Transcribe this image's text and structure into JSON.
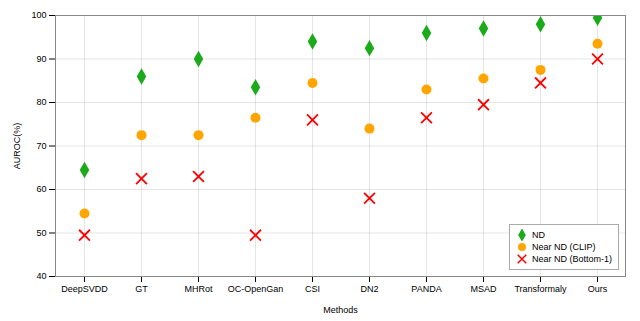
{
  "chart_data": {
    "type": "scatter",
    "xlabel": "Methods",
    "ylabel": "AUROC(%)",
    "categories": [
      "DeepSVDD",
      "GT",
      "MHRot",
      "OC-OpenGan",
      "CSI",
      "DN2",
      "PANDA",
      "MSAD",
      "Transformaly",
      "Ours"
    ],
    "series": [
      {
        "name": "ND",
        "color": "#1aaa1a",
        "marker": "diamond",
        "values": [
          64.5,
          86.0,
          90.0,
          83.5,
          94.0,
          92.5,
          96.0,
          97.0,
          98.0,
          99.5
        ]
      },
      {
        "name": "Near ND (CLIP)",
        "color": "#ffa500",
        "marker": "circle",
        "values": [
          54.5,
          72.5,
          72.5,
          76.5,
          84.5,
          74.0,
          83.0,
          85.5,
          87.5,
          93.5
        ]
      },
      {
        "name": "Near ND (Bottom-1)",
        "color": "#ff0000",
        "marker": "x",
        "values": [
          49.5,
          62.5,
          63.0,
          49.5,
          76.0,
          58.0,
          76.5,
          79.5,
          84.5,
          90.0
        ]
      }
    ],
    "ylim": [
      40,
      100
    ],
    "yticks": [
      40,
      50,
      60,
      70,
      80,
      90,
      100
    ],
    "grid": true,
    "legend": "lower right"
  }
}
